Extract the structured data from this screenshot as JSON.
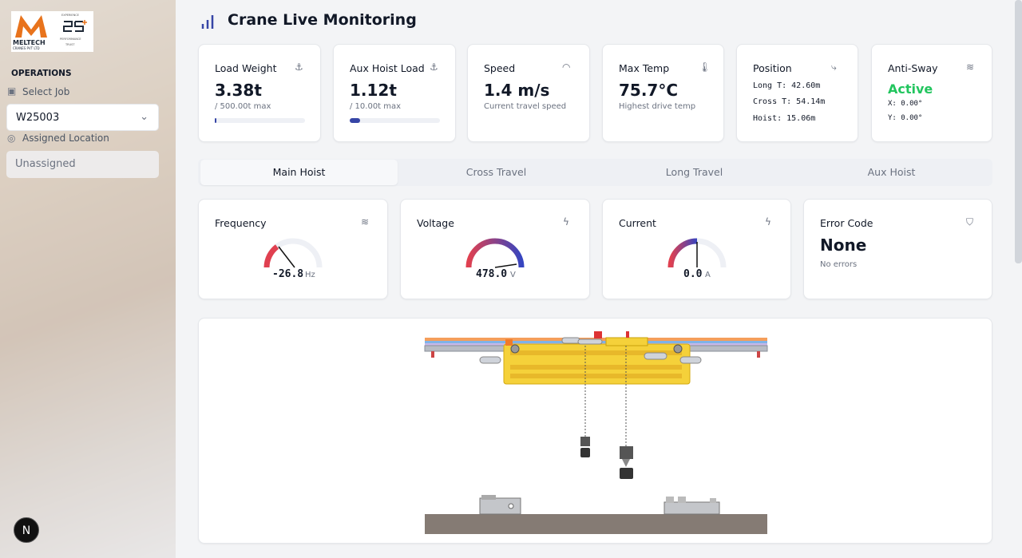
{
  "sidebar": {
    "logo": {
      "name": "MELTECH",
      "subtitle": "CRANES PVT LTD",
      "badge": [
        "EXPERIENCE",
        "PERFORMANCE",
        "TRUST"
      ]
    },
    "section": "OPERATIONS",
    "select_job_label": "Select Job",
    "job": "W25003",
    "location_label": "Assigned Location",
    "location": "Unassigned",
    "avatar": "N"
  },
  "header": {
    "title": "Crane Live Monitoring"
  },
  "stats": [
    {
      "label": "Load Weight",
      "value": "3.38t",
      "note": "/ 500.00t max"
    },
    {
      "label": "Aux Hoist Load",
      "value": "1.12t",
      "note": "/ 10.00t max"
    },
    {
      "label": "Speed",
      "value": "1.4 m/s",
      "note": "Current travel speed"
    },
    {
      "label": "Max Temp",
      "value": "75.7°C",
      "note": "Highest drive temp"
    },
    {
      "label": "Position",
      "lines": [
        "Long T: 42.60m",
        "Cross T: 54.14m",
        "Hoist: 15.06m"
      ]
    },
    {
      "label": "Anti-Sway",
      "value": "Active",
      "lines": [
        "X: 0.00°",
        "Y: 0.00°"
      ]
    }
  ],
  "tabs": [
    "Main Hoist",
    "Cross Travel",
    "Long Travel",
    "Aux Hoist"
  ],
  "gauges": [
    {
      "label": "Frequency",
      "value": "-26.8",
      "unit": "Hz"
    },
    {
      "label": "Voltage",
      "value": "478.0",
      "unit": "V"
    },
    {
      "label": "Current",
      "value": "0.0",
      "unit": "A"
    },
    {
      "label": "Error Code",
      "value": "None",
      "note": "No errors"
    }
  ]
}
